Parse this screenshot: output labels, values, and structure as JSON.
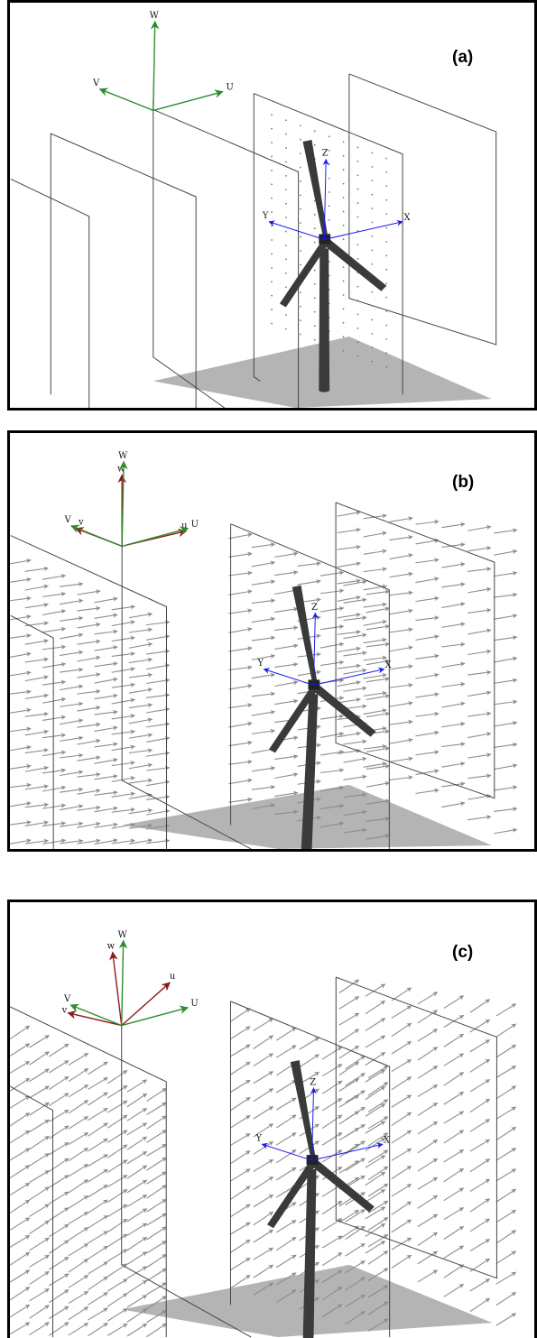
{
  "panels": [
    {
      "label": "(a)",
      "global_axes": [
        "U",
        "V",
        "W"
      ],
      "local_axes": [],
      "turbine_axes": [
        "X",
        "Y",
        "Z"
      ],
      "field": "points"
    },
    {
      "label": "(b)",
      "global_axes": [
        "U",
        "V",
        "W"
      ],
      "local_axes": [
        "u",
        "v",
        "w"
      ],
      "turbine_axes": [
        "X",
        "Y",
        "Z"
      ],
      "field": "horizontal-arrows"
    },
    {
      "label": "(c)",
      "global_axes": [
        "U",
        "V",
        "W"
      ],
      "local_axes": [
        "u",
        "v",
        "w"
      ],
      "turbine_axes": [
        "X",
        "Y",
        "Z"
      ],
      "field": "inclined-arrows"
    }
  ],
  "colors": {
    "global_axes": "#2e8b2e",
    "local_axes": "#8b1a1a",
    "turbine_axes": "#1a1aee",
    "ground": "#b4b4b4",
    "turbine": "#3a3a3a",
    "arrows": "#8c8c8c",
    "planes": "#444444"
  }
}
